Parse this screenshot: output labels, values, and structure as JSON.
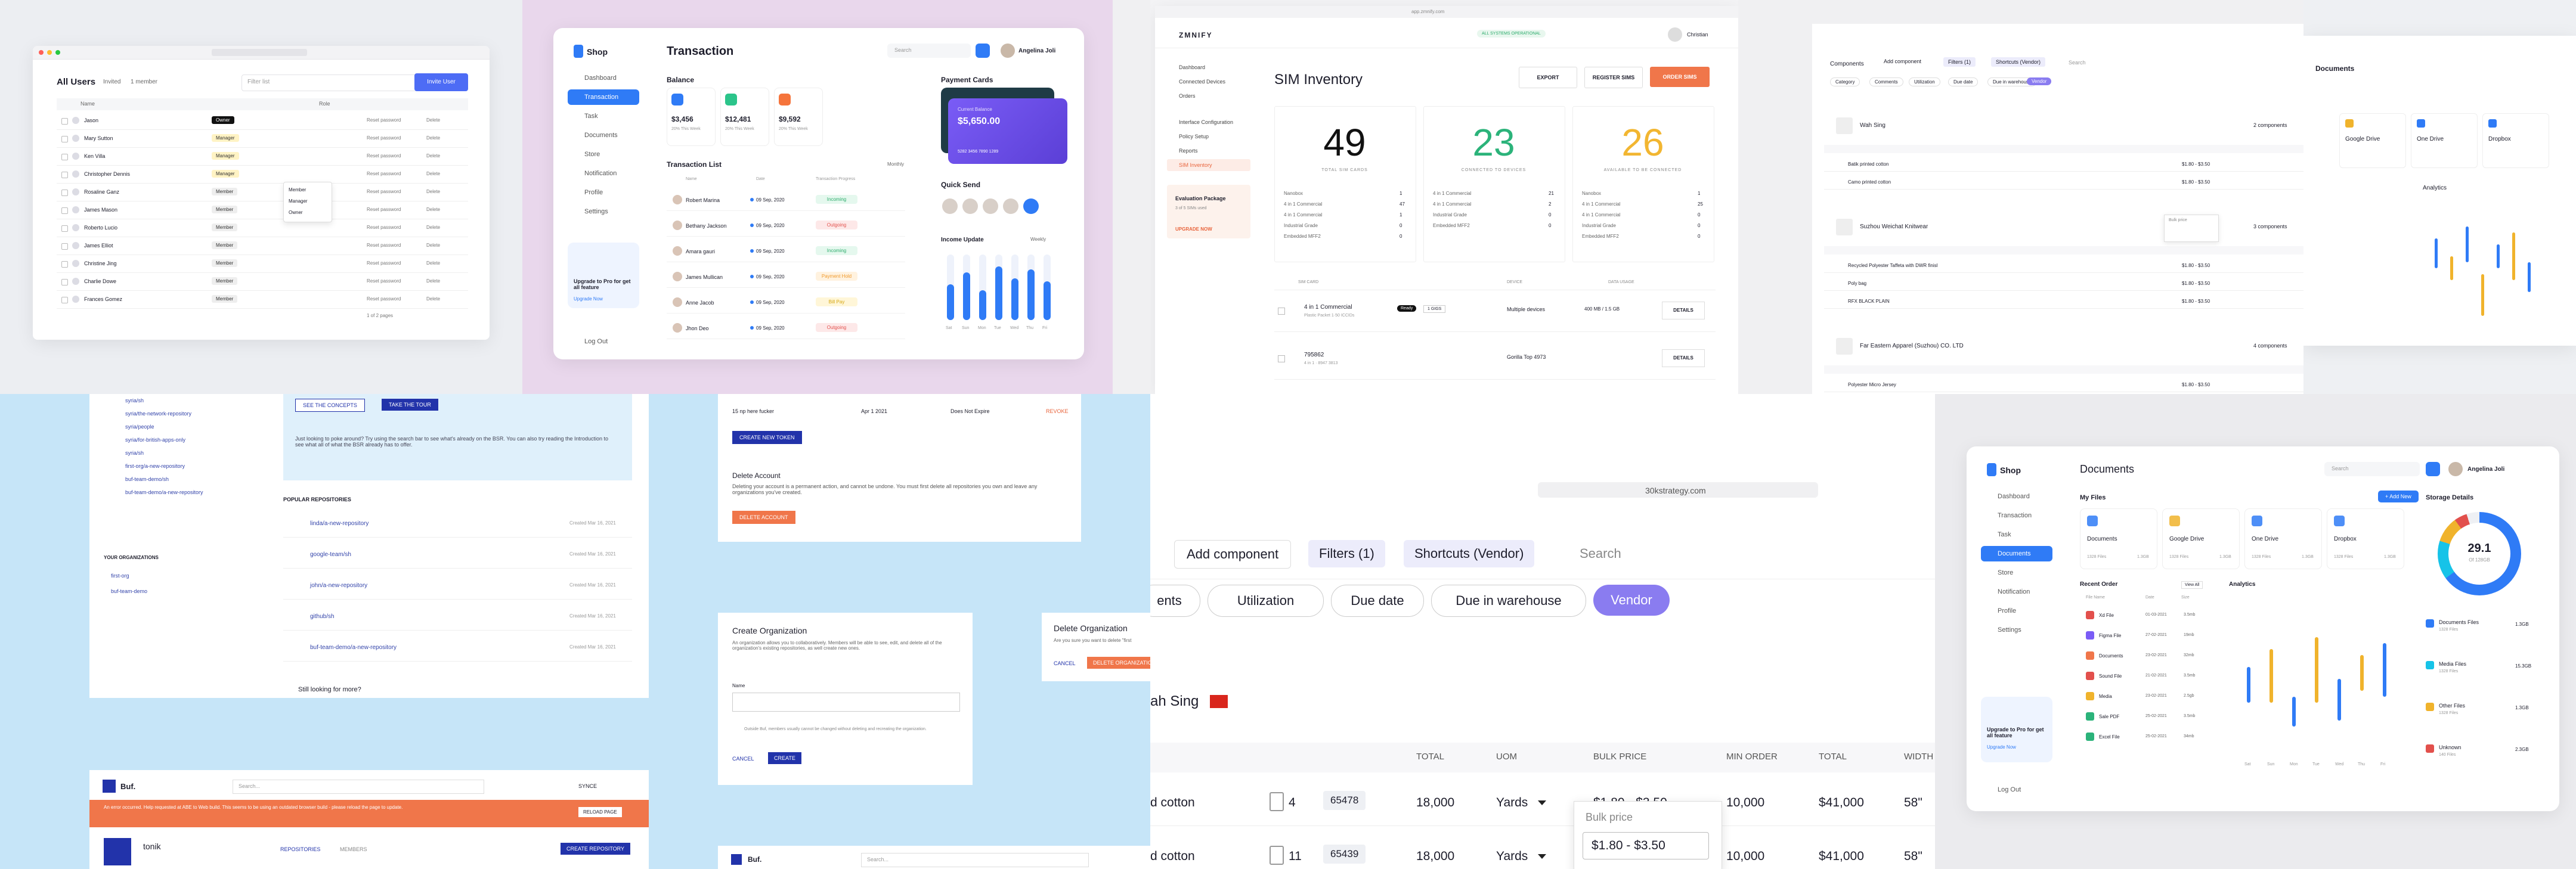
{
  "users": {
    "title": "All Users",
    "tabs": [
      "Invited",
      "1 member"
    ],
    "button": "Invite User",
    "search": "Filter list",
    "columns": [
      "Name",
      "Role"
    ],
    "rows": [
      {
        "name": "Jason",
        "role": "Owner"
      },
      {
        "name": "Mary Sutton",
        "role": "Manager"
      },
      {
        "name": "Ken Villa",
        "role": "Manager"
      },
      {
        "name": "Christopher Dennis",
        "role": "Manager"
      },
      {
        "name": "Rosaline Ganz",
        "role": "Member"
      },
      {
        "name": "James Mason",
        "role": "Member"
      },
      {
        "name": "Roberto Lucio",
        "role": "Member"
      },
      {
        "name": "James Elliot",
        "role": "Member"
      },
      {
        "name": "Christine Jing",
        "role": "Member"
      },
      {
        "name": "Charlie Dowe",
        "role": "Member"
      },
      {
        "name": "Frances Gomez",
        "role": "Member"
      }
    ],
    "action1": "Reset password",
    "action2": "Delete",
    "menu": [
      "Member",
      "Manager",
      "Owner"
    ],
    "pager": "1 of 2 pages"
  },
  "shop": {
    "logo": "Shop",
    "nav": [
      "Dashboard",
      "Transaction",
      "Task",
      "Documents",
      "Store",
      "Notification",
      "Profile",
      "Settings"
    ],
    "logout": "Log Out",
    "upgrade": "Upgrade to Pro for get all feature",
    "upgrade_button": "Upgrade Now",
    "title": "Transaction",
    "search": "Search",
    "user": "Angelina Joli",
    "balance": "Balance",
    "cards": [
      {
        "amount": "$3,456",
        "note": "20% This Week"
      },
      {
        "amount": "$12,481",
        "note": "20% This Week"
      },
      {
        "amount": "$9,592",
        "note": "20% This Week"
      }
    ],
    "payment_cards": "Payment Cards",
    "card_label": "Current Balance",
    "card_amount": "$5,650.00",
    "card_number": "5282 3456 7890 1289",
    "quick_send": "Quick Send",
    "list_title": "Transaction List",
    "list_filter": "Monthly",
    "columns": [
      "Name",
      "Date",
      "Transaction Progress"
    ],
    "rows": [
      {
        "name": "Robert Marina",
        "date": "09 Sep, 2020",
        "status": "Incoming"
      },
      {
        "name": "Bethany Jackson",
        "date": "09 Sep, 2020",
        "status": "Outgoing"
      },
      {
        "name": "Amara gauri",
        "date": "09 Sep, 2020",
        "status": "Incoming"
      },
      {
        "name": "James Mullican",
        "date": "09 Sep, 2020",
        "status": "Payment Hold"
      },
      {
        "name": "Anne Jacob",
        "date": "09 Sep, 2020",
        "status": "Bill Pay"
      },
      {
        "name": "Jhon Deo",
        "date": "09 Sep, 2020",
        "status": "Outgoing"
      }
    ],
    "income": "Income Update",
    "income_filter": "Weekly",
    "days": [
      "Sat",
      "Sun",
      "Mon",
      "Tue",
      "Wed",
      "Thu",
      "Fri"
    ]
  },
  "sim": {
    "url": "app.zmnify.com",
    "logo": "ZMNIFY",
    "status": "ALL SYSTEMS OPERATIONAL",
    "user": "Christian",
    "nav": [
      "Dashboard",
      "Connected Devices",
      "Orders",
      "Interface Configuration",
      "Policy Setup",
      "Reports",
      "SIM Inventory"
    ],
    "package": "Evaluation Package",
    "package_sub": "3 of 5 SIMs used",
    "upgrade": "UPGRADE NOW",
    "title": "SIM Inventory",
    "buttons": [
      "EXPORT",
      "REGISTER SIMS",
      "ORDER SIMS"
    ],
    "stats": [
      {
        "value": "49",
        "label": "TOTAL SIM CARDS",
        "lines": [
          [
            "Nanobox",
            "1"
          ],
          [
            "4 in 1 Commercial",
            "47"
          ],
          [
            "4 in 1 Commercial",
            "1"
          ],
          [
            "Industrial Grade",
            "0"
          ],
          [
            "Embedded MFF2",
            "0"
          ]
        ]
      },
      {
        "value": "23",
        "label": "CONNECTED TO DEVICES",
        "lines": [
          [
            "4 in 1 Commercial",
            "21"
          ],
          [
            "4 in 1 Commercial",
            "2"
          ],
          [
            "Industrial Grade",
            "0"
          ],
          [
            "Embedded MFF2",
            "0"
          ]
        ]
      },
      {
        "value": "26",
        "label": "AVAILABLE TO BE CONNECTED",
        "lines": [
          [
            "Nanobox",
            "1"
          ],
          [
            "4 in 1 Commercial",
            "25"
          ],
          [
            "4 in 1 Commercial",
            "0"
          ],
          [
            "Industrial Grade",
            "0"
          ],
          [
            "Embedded MFF2",
            "0"
          ]
        ]
      }
    ],
    "columns": [
      "SIM CARD",
      "DEVICE",
      "DATA USAGE"
    ],
    "rows": [
      {
        "sim": "4 in 1 Commercial",
        "sub": "Plastic Packet 1·50 ICCIDs",
        "badge": "Ready",
        "tag": "1 GIGS",
        "device": "Multiple devices",
        "usage": "400 MB / 1.5 GB",
        "action": "DETAILS"
      },
      {
        "sim": "795862",
        "sub": "4 in 1 · 8947 3813",
        "badge": "",
        "tag": "",
        "device": "Gorilla Top 4973",
        "usage": "",
        "action": "DETAILS"
      }
    ]
  },
  "components": {
    "title": "Components",
    "add": "Add component",
    "filters": "Filters (1)",
    "shortcuts": "Shortcuts (Vendor)",
    "search": "Search",
    "tabs": [
      "Category",
      "Comments",
      "Utilization",
      "Due date",
      "Due in warehouse",
      "Vendor"
    ],
    "groups": [
      {
        "name": "Wah Sing",
        "count": "2 components"
      },
      {
        "name": "Suzhou Weichat Knitwear",
        "count": "3 components"
      },
      {
        "name": "Far Eastern Apparel (Suzhou) CO. LTD",
        "count": "4 components"
      }
    ],
    "rows": [
      "Batik printed cotton",
      "Camo printed cotton",
      "Recycled Polyester Taffeta with DWR finish",
      "Poly bag",
      "RFX BLACK PLAIN",
      "Polyester Micro Jersey"
    ],
    "popup": "Bulk price",
    "price": "$1.80 - $3.50"
  },
  "storage": {
    "title": "Documents",
    "drives": [
      "Google Drive",
      "One Drive",
      "Dropbox"
    ],
    "analytics": "Analytics"
  },
  "buf": {
    "list": [
      "syria/sh",
      "syria/the-network-repository",
      "syria/people",
      "syria/for-british-apps-only",
      "syria/sh",
      "first-org/a-new-repository",
      "buf-team-demo/sh",
      "buf-team-demo/a-new-repository"
    ],
    "orgs_title": "YOUR ORGANIZATIONS",
    "orgs": [
      "first-org",
      "buf-team-demo"
    ],
    "intro": "Just looking to poke around? Try using the search bar to see what's already on the BSR. You can also try reading the Introduction to see what all of what the BSR already has to offer.",
    "btn_concepts": "SEE THE CONCEPTS",
    "btn_tour": "TAKE THE TOUR",
    "popular": "POPULAR REPOSITORIES",
    "repos": [
      "linda/a-new-repository",
      "google-team/sh",
      "john/a-new-repository",
      "github/sh",
      "buf-team-demo/a-new-repository"
    ],
    "created": "Created Mar 16, 2021",
    "more": "Still looking for more?",
    "token_name": "15 np here fucker",
    "token_date": "Apr 1 2021",
    "token_expiry": "Does Not Expire",
    "revoke": "REVOKE",
    "new_token": "CREATE NEW TOKEN",
    "delete_title": "Delete Account",
    "delete_text": "Deleting your account is a permanent action, and cannot be undone. You must first delete all repositories you own and leave any organizations you've created.",
    "delete_btn": "DELETE ACCOUNT",
    "org_title": "Create Organization",
    "org_text": "An organization allows you to collaboratively. Members will be able to see, edit, and delete all of the organization's existing repositories, as well create new ones.",
    "org_name": "Name",
    "org_check": "Outside Buf, members usually cannot be changed without deleting and recreating the organization.",
    "cancel": "CANCEL",
    "create": "CREATE",
    "delorg_title": "Delete Organization",
    "delorg_text": "Are you sure you want to delete \"first",
    "delorg_btn": "DELETE ORGANIZATION",
    "logo": "Buf.",
    "search": "Search...",
    "sync": "SYNCE",
    "banner": "An error occurred. Help requested at ABE to Web build. This seems to be using an outdated browser build - please reload the page to update.",
    "reload": "RELOAD PAGE",
    "org": "tonik",
    "tabs": [
      "REPOSITORIES",
      "MEMBERS"
    ],
    "create_repo": "CREATE REPOSITORY"
  },
  "zoom": {
    "url": "30kstrategy.com",
    "add": "Add component",
    "filters": "Filters (1)",
    "shortcuts": "Shortcuts (Vendor)",
    "search": "Search",
    "chips": [
      "ents",
      "Utilization",
      "Due date",
      "Due in warehouse",
      "Vendor"
    ],
    "group": "ah Sing",
    "columns": [
      "TOTAL",
      "UOM",
      "BULK PRICE",
      "MIN ORDER",
      "TOTAL",
      "WIDTH"
    ],
    "rows": [
      {
        "name": "d cotton",
        "files": "4",
        "code": "65478",
        "total": "18,000",
        "uom": "Yards",
        "price": "$1.80 - $3.50",
        "min": "10,000",
        "sum": "$41,000",
        "width": "58\""
      },
      {
        "name": "d cotton",
        "files": "11",
        "code": "65439",
        "total": "18,000",
        "uom": "Yards",
        "price": "",
        "min": "10,000",
        "sum": "$41,000",
        "width": "58\""
      }
    ],
    "popup": "Bulk price",
    "popup_value": "$1.80 - $3.50"
  },
  "docs": {
    "logo": "Shop",
    "nav": [
      "Dashboard",
      "Transaction",
      "Task",
      "Documents",
      "Store",
      "Notification",
      "Profile",
      "Settings"
    ],
    "logout": "Log Out",
    "upgrade": "Upgrade to Pro for get all feature",
    "upgrade_button": "Upgrade Now",
    "title": "Documents",
    "search": "Search",
    "user": "Angelina Joli",
    "add": "+ Add New",
    "my_files": "My Files",
    "files": [
      {
        "name": "Documents",
        "count": "1328 Files",
        "size": "1.3GB"
      },
      {
        "name": "Google Drive",
        "count": "1328 Files",
        "size": "1.3GB"
      },
      {
        "name": "One Drive",
        "count": "1328 Files",
        "size": "1.3GB"
      },
      {
        "name": "Dropbox",
        "count": "1328 Files",
        "size": "1.3GB"
      }
    ],
    "storage_title": "Storage Details",
    "storage_value": "29.1",
    "storage_of": "Of 128GB",
    "recent": "Recent Order",
    "view_all": "View All",
    "recent_cols": [
      "File Name",
      "Date",
      "Size"
    ],
    "recent_rows": [
      {
        "name": "Xd File",
        "date": "01-03-2021",
        "size": "3.5mb"
      },
      {
        "name": "Figma File",
        "date": "27-02-2021",
        "size": "19mb"
      },
      {
        "name": "Documents",
        "date": "23-02-2021",
        "size": "32mb"
      },
      {
        "name": "Sound File",
        "date": "21-02-2021",
        "size": "3.5mb"
      },
      {
        "name": "Media",
        "date": "23-02-2021",
        "size": "2.5gb"
      },
      {
        "name": "Sale PDF",
        "date": "25-02-2021",
        "size": "3.5mb"
      },
      {
        "name": "Excel File",
        "date": "25-02-2021",
        "size": "34mb"
      }
    ],
    "analytics": "Analytics",
    "days": [
      "Sat",
      "Sun",
      "Mon",
      "Tue",
      "Wed",
      "Thu",
      "Fri"
    ],
    "store": [
      {
        "name": "Documents Files",
        "count": "1328 Files",
        "size": "1.3GB"
      },
      {
        "name": "Media Files",
        "count": "1328 Files",
        "size": "15.3GB"
      },
      {
        "name": "Other Files",
        "count": "1328 Files",
        "size": "1.3GB"
      },
      {
        "name": "Unknown",
        "count": "140 Files",
        "size": "2.3GB"
      }
    ]
  }
}
